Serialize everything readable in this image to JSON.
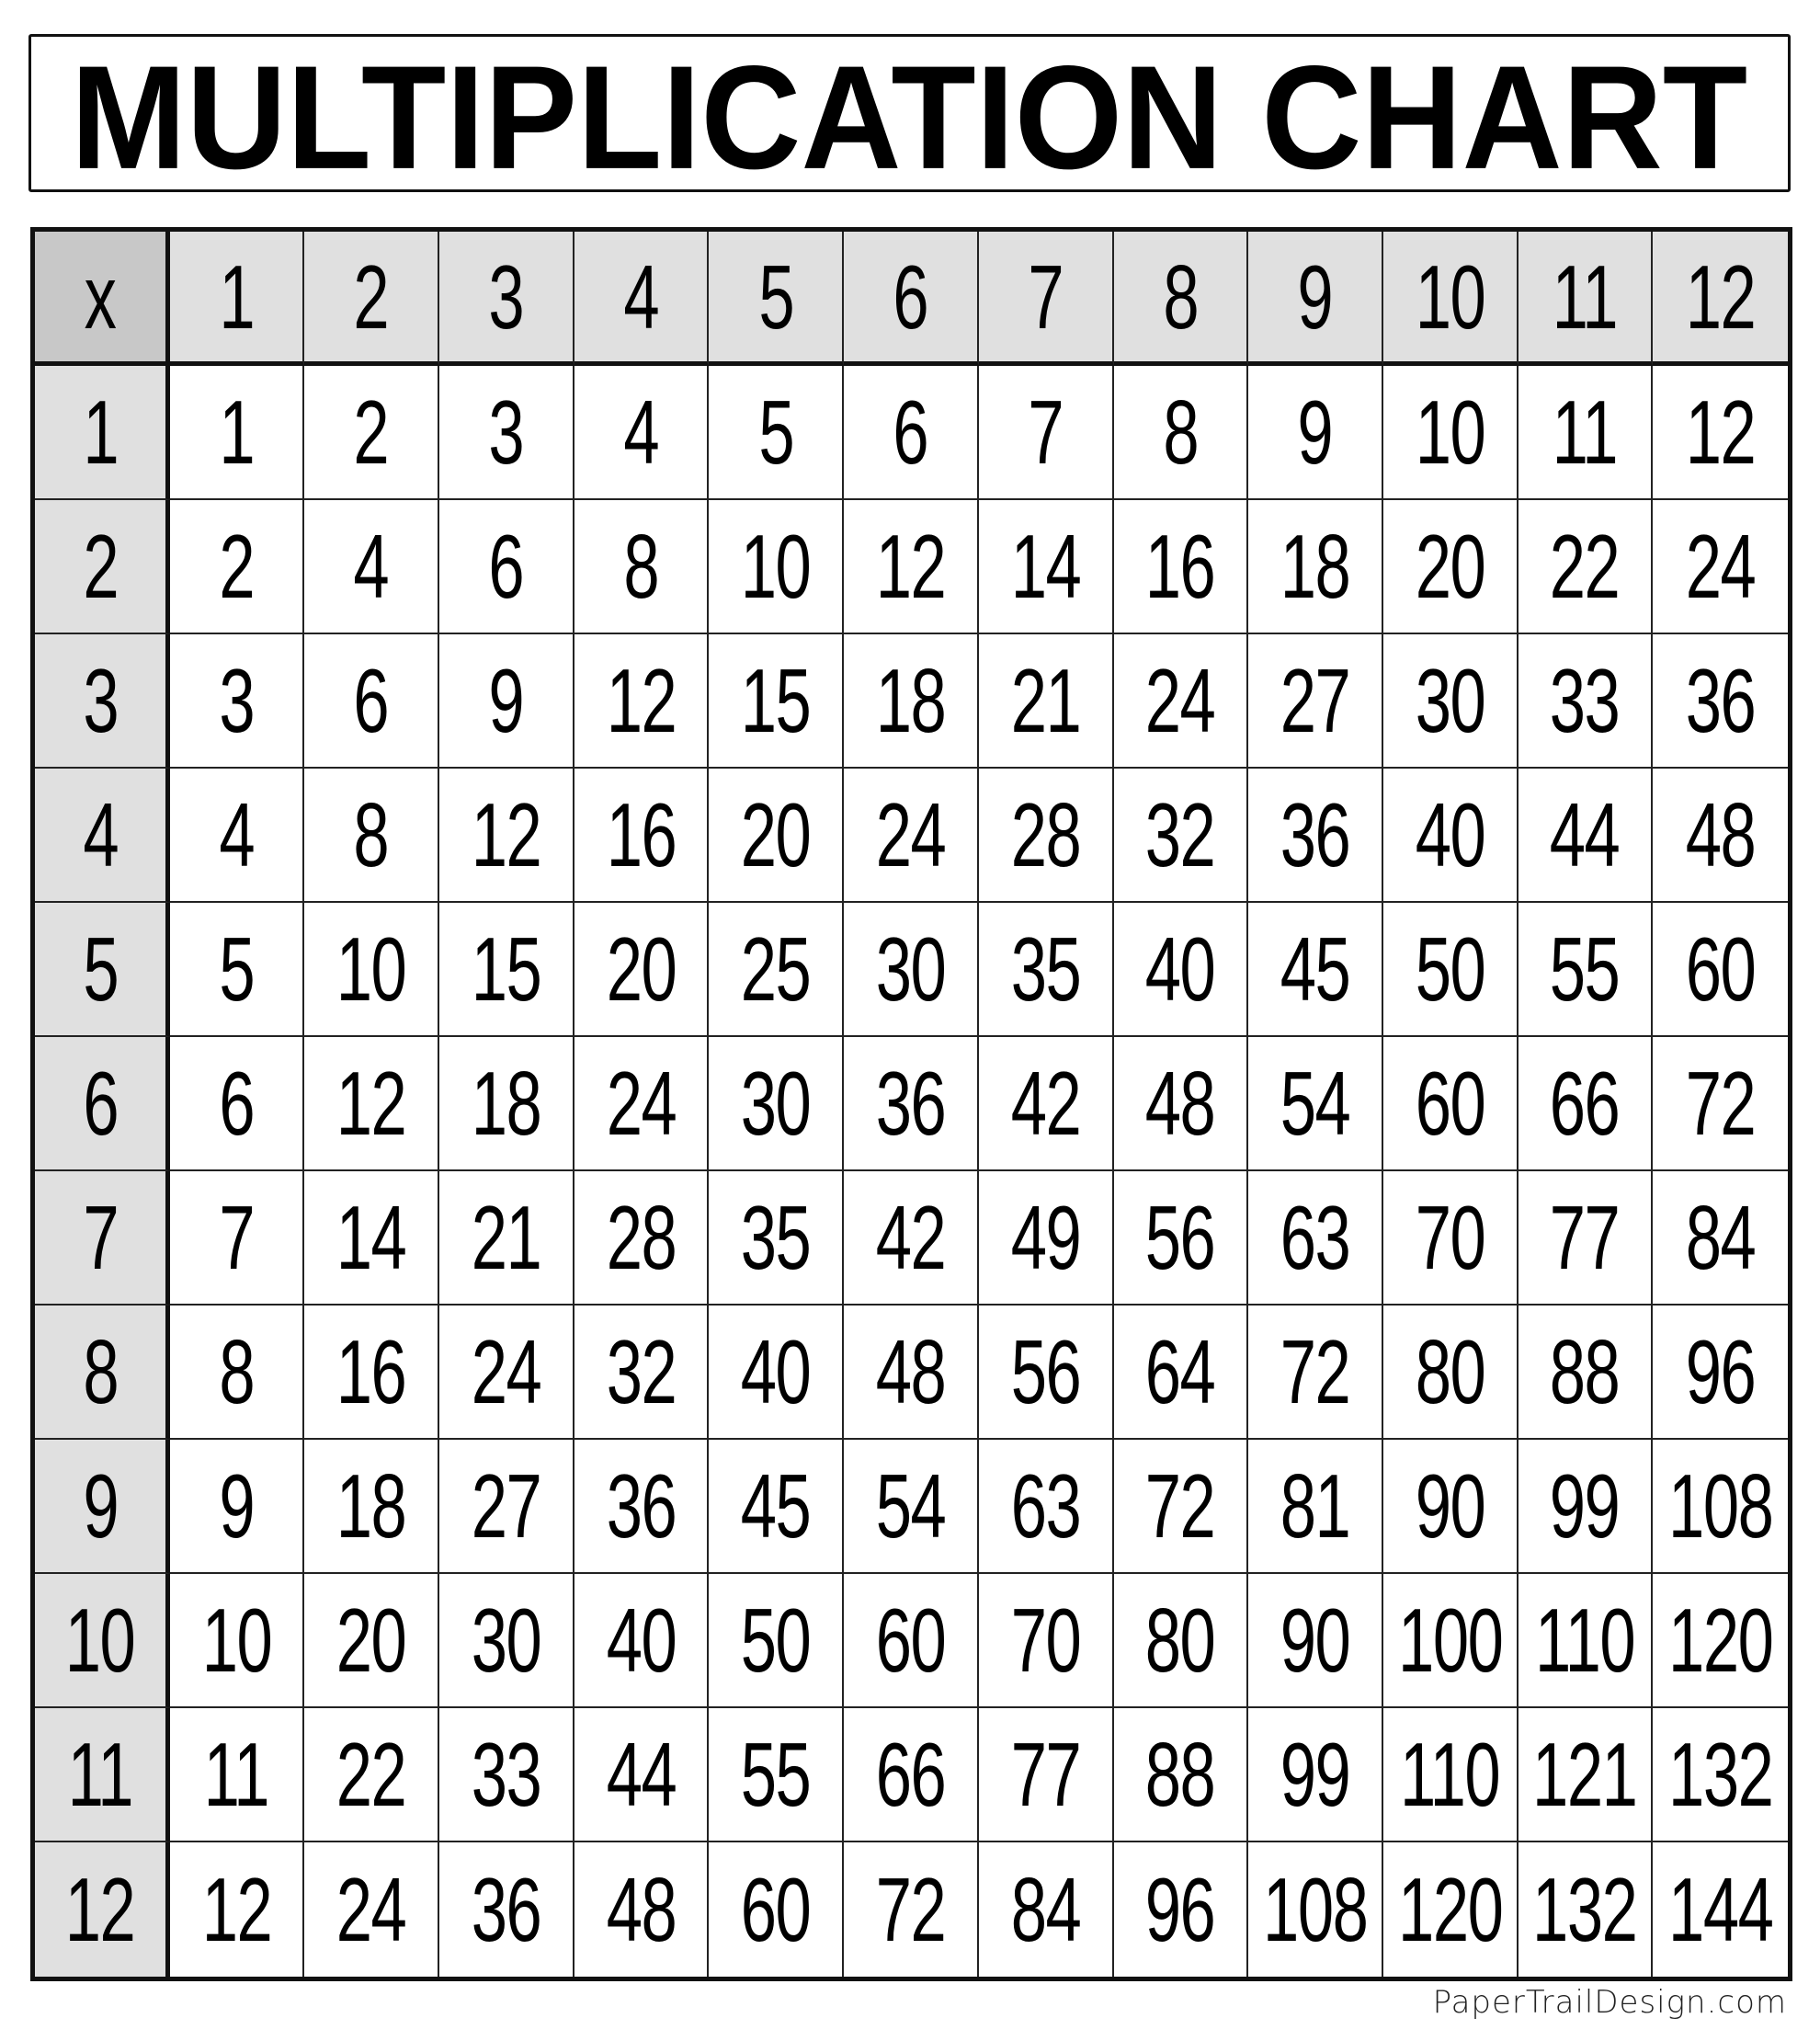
{
  "title": "MULTIPLICATION CHART",
  "footer": "PaperTrailDesign.com",
  "colors": {
    "corner": "#c8c8c8",
    "header": "#e0e0e0",
    "border": "#111111"
  },
  "chart_data": {
    "type": "table",
    "title": "MULTIPLICATION CHART",
    "corner_label": "x",
    "column_headers": [
      "1",
      "2",
      "3",
      "4",
      "5",
      "6",
      "7",
      "8",
      "9",
      "10",
      "11",
      "12"
    ],
    "row_headers": [
      "1",
      "2",
      "3",
      "4",
      "5",
      "6",
      "7",
      "8",
      "9",
      "10",
      "11",
      "12"
    ],
    "rows": [
      [
        1,
        2,
        3,
        4,
        5,
        6,
        7,
        8,
        9,
        10,
        11,
        12
      ],
      [
        2,
        4,
        6,
        8,
        10,
        12,
        14,
        16,
        18,
        20,
        22,
        24
      ],
      [
        3,
        6,
        9,
        12,
        15,
        18,
        21,
        24,
        27,
        30,
        33,
        36
      ],
      [
        4,
        8,
        12,
        16,
        20,
        24,
        28,
        32,
        36,
        40,
        44,
        48
      ],
      [
        5,
        10,
        15,
        20,
        25,
        30,
        35,
        40,
        45,
        50,
        55,
        60
      ],
      [
        6,
        12,
        18,
        24,
        30,
        36,
        42,
        48,
        54,
        60,
        66,
        72
      ],
      [
        7,
        14,
        21,
        28,
        35,
        42,
        49,
        56,
        63,
        70,
        77,
        84
      ],
      [
        8,
        16,
        24,
        32,
        40,
        48,
        56,
        64,
        72,
        80,
        88,
        96
      ],
      [
        9,
        18,
        27,
        36,
        45,
        54,
        63,
        72,
        81,
        90,
        99,
        108
      ],
      [
        10,
        20,
        30,
        40,
        50,
        60,
        70,
        80,
        90,
        100,
        110,
        120
      ],
      [
        11,
        22,
        33,
        44,
        55,
        66,
        77,
        88,
        99,
        110,
        121,
        132
      ],
      [
        12,
        24,
        36,
        48,
        60,
        72,
        84,
        96,
        108,
        120,
        132,
        144
      ]
    ]
  }
}
